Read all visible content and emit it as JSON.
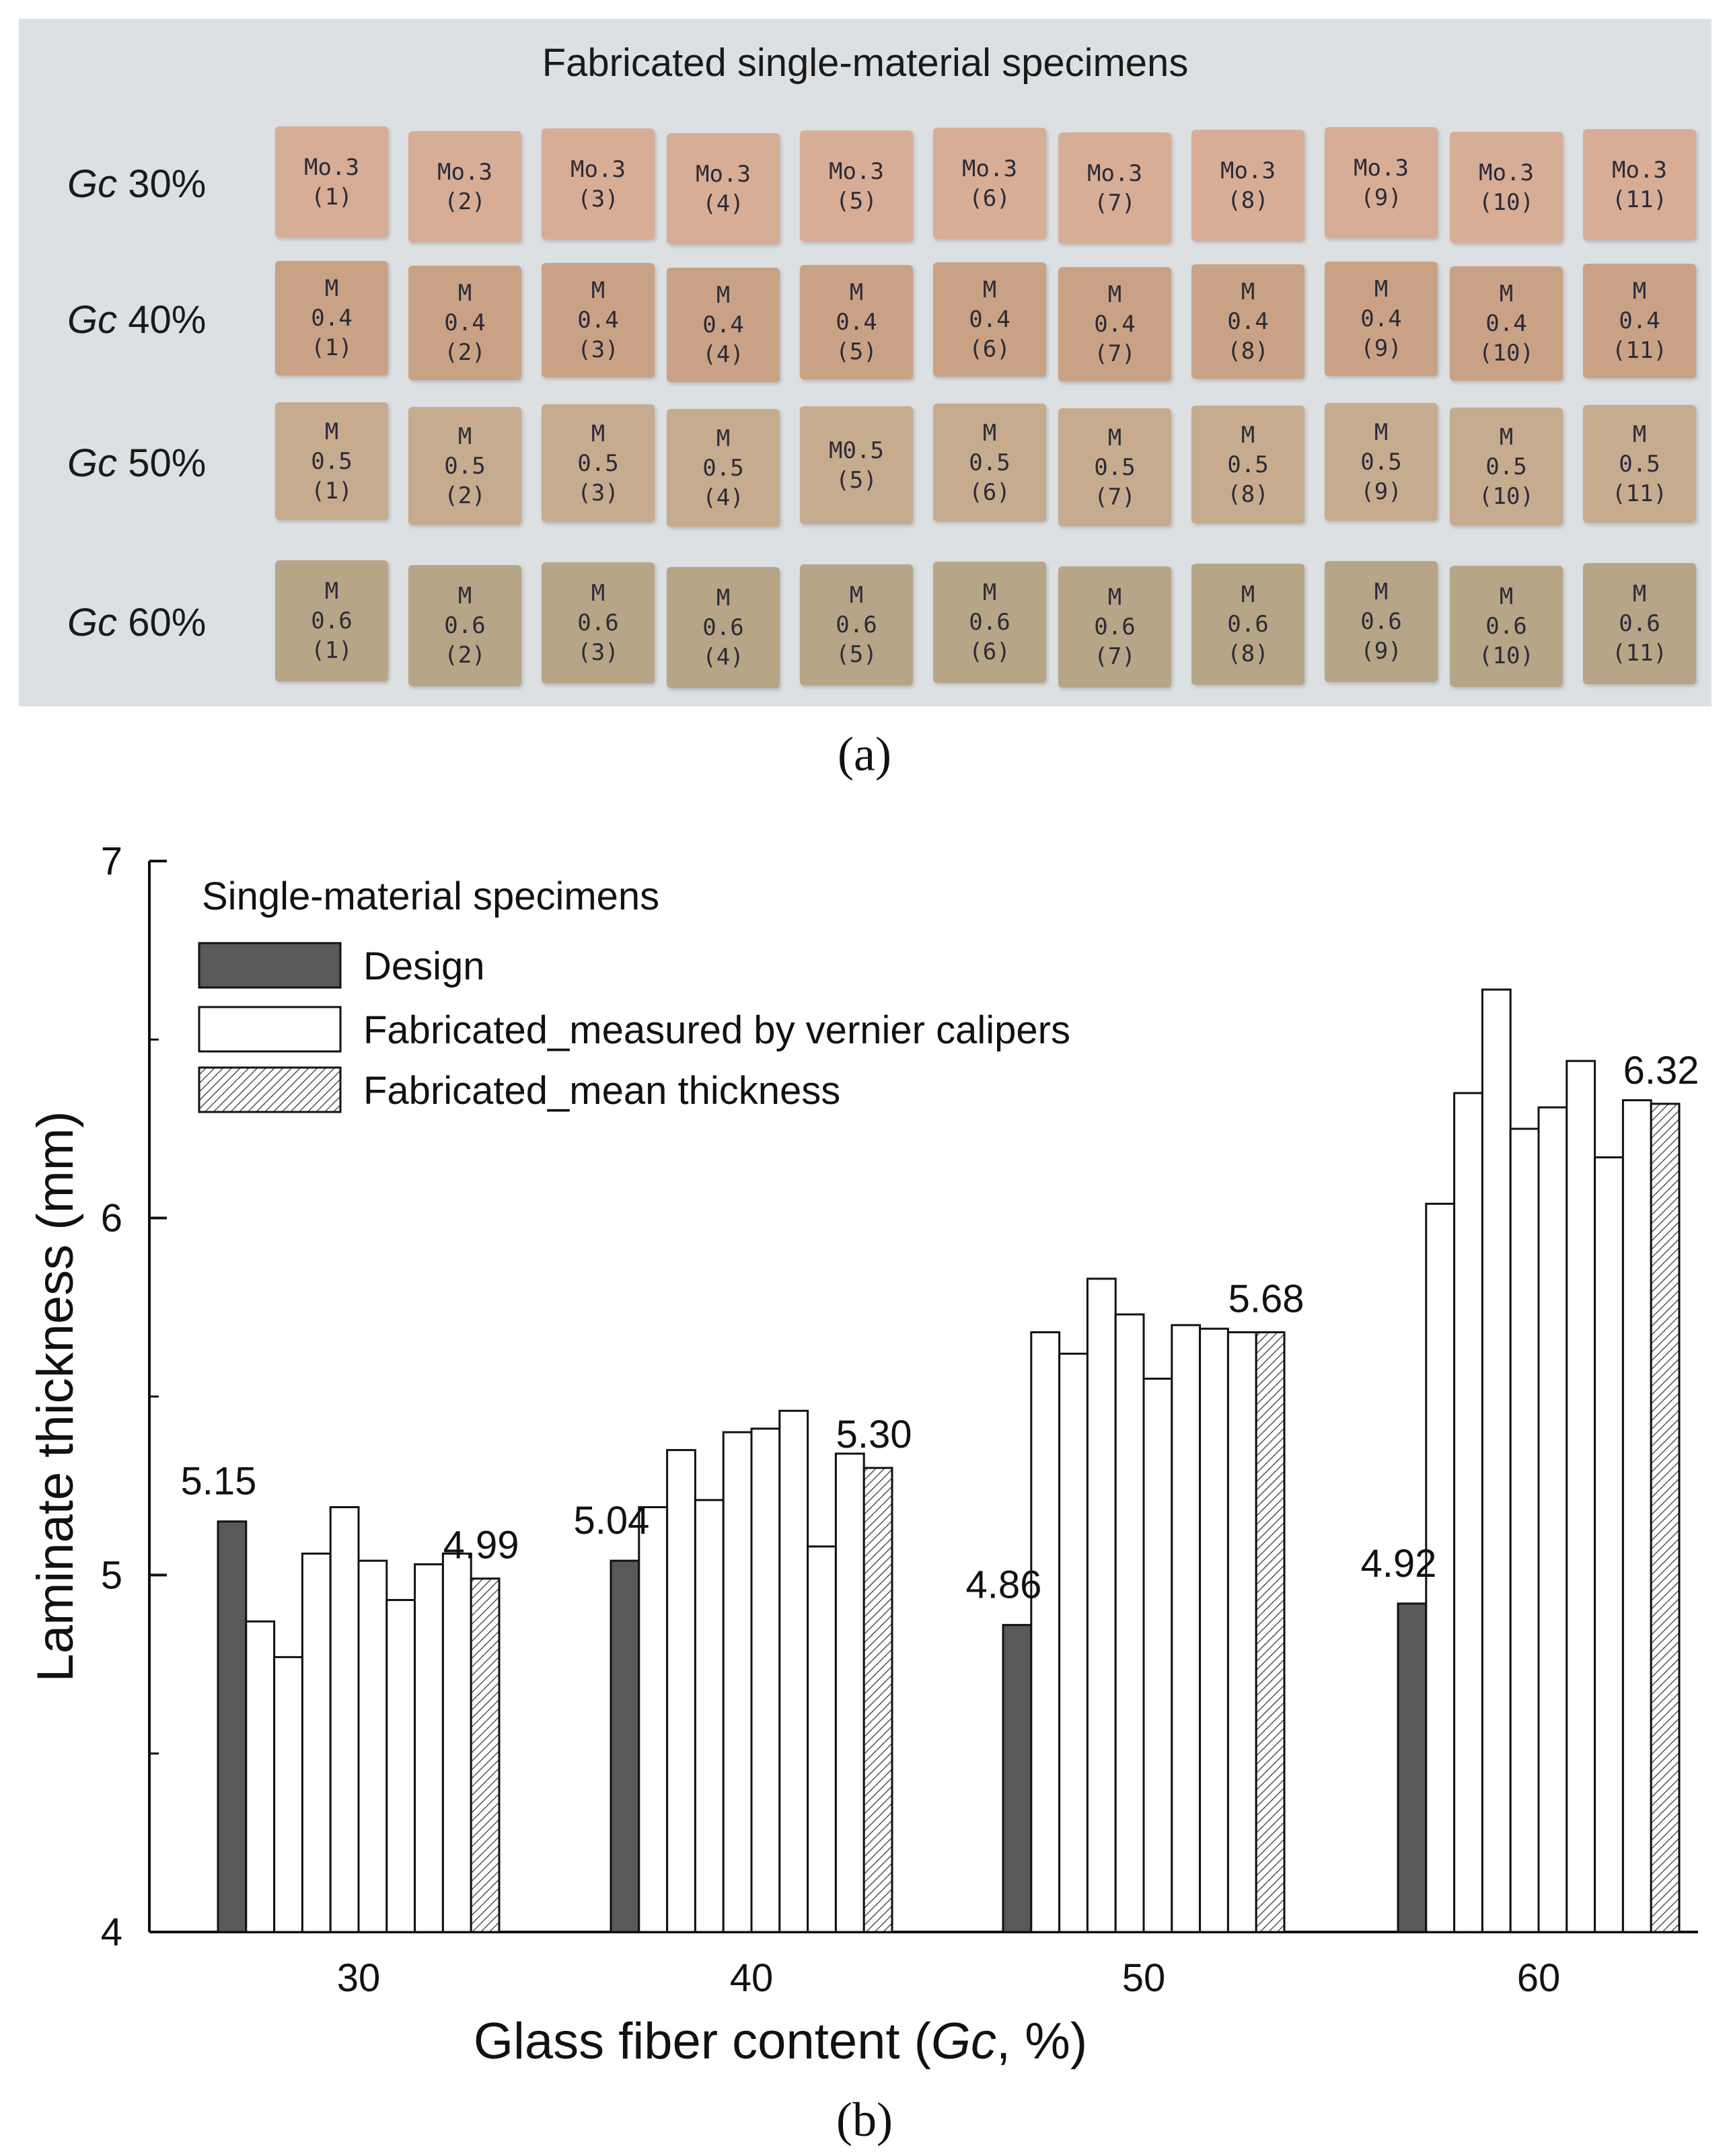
{
  "panel_a": {
    "title": "Fabricated single-material specimens",
    "caption": "(a)",
    "rows": [
      {
        "prefix": "Gc",
        "pct": "30%",
        "specimens": [
          "Mo.3\n(1)",
          "Mo.3\n(2)",
          "Mo.3\n(3)",
          "Mo.3\n(4)",
          "Mo.3\n(5)",
          "Mo.3\n(6)",
          "Mo.3\n(7)",
          "Mo.3\n(8)",
          "Mo.3\n(9)",
          "Mo.3\n(10)",
          "Mo.3\n(11)"
        ]
      },
      {
        "prefix": "Gc",
        "pct": "40%",
        "specimens": [
          "M\n0.4\n(1)",
          "M\n0.4\n(2)",
          "M\n0.4\n(3)",
          "M\n0.4\n(4)",
          "M\n0.4\n(5)",
          "M\n0.4\n(6)",
          "M\n0.4\n(7)",
          "M\n0.4\n(8)",
          "M\n0.4\n(9)",
          "M\n0.4\n(10)",
          "M\n0.4\n(11)"
        ]
      },
      {
        "prefix": "Gc",
        "pct": "50%",
        "specimens": [
          "M\n0.5\n(1)",
          "M\n0.5\n(2)",
          "M\n0.5\n(3)",
          "M\n0.5\n(4)",
          "M0.5\n(5)",
          "M\n0.5\n(6)",
          "M\n0.5\n(7)",
          "M\n0.5\n(8)",
          "M\n0.5\n(9)",
          "M\n0.5\n(10)",
          "M\n0.5\n(11)"
        ]
      },
      {
        "prefix": "Gc",
        "pct": "60%",
        "specimens": [
          "M\n0.6\n(1)",
          "M\n0.6\n(2)",
          "M\n0.6\n(3)",
          "M\n0.6\n(4)",
          "M\n0.6\n(5)",
          "M\n0.6\n(6)",
          "M\n0.6\n(7)",
          "M\n0.6\n(8)",
          "M\n0.6\n(9)",
          "M\n0.6\n(10)",
          "M\n0.6\n(11)"
        ]
      }
    ],
    "colors": {
      "background": "#dde0e2",
      "row_30": "#d7ad96",
      "row_40": "#c9a285",
      "row_50": "#c7ab8e",
      "row_60": "#b6a586"
    }
  },
  "chart_data": {
    "type": "bar",
    "caption": "(b)",
    "categories": [
      "30",
      "40",
      "50",
      "60"
    ],
    "xlabel_prefix": "Glass fiber content (",
    "xlabel_italic": "Gc",
    "xlabel_suffix": ", %)",
    "ylabel": "Laminate thickness (mm)",
    "ylim": [
      4,
      7
    ],
    "yticks": [
      4,
      5,
      6,
      7
    ],
    "minor_ticks": [
      4.5,
      5.5,
      6.5
    ],
    "legend_title": "Single-material specimens",
    "series": [
      {
        "name": "Design",
        "fill": "#595959",
        "values": [
          5.15,
          5.04,
          4.86,
          4.92
        ]
      },
      {
        "name": "Fabricated_measured by vernier calipers",
        "fill": "#ffffff",
        "values": [
          [
            4.87,
            4.77,
            5.06,
            5.19,
            5.04,
            4.93,
            5.03,
            5.06
          ],
          [
            5.19,
            5.35,
            5.21,
            5.4,
            5.41,
            5.46,
            5.08,
            5.34
          ],
          [
            5.68,
            5.62,
            5.83,
            5.73,
            5.55,
            5.7,
            5.69,
            5.68
          ],
          [
            6.04,
            6.35,
            6.64,
            6.25,
            6.31,
            6.44,
            6.17,
            6.33
          ]
        ]
      },
      {
        "name": "Fabricated_mean thickness",
        "fill": "hatch",
        "values": [
          4.99,
          5.3,
          5.68,
          6.32
        ]
      }
    ],
    "labels": {
      "design": [
        "5.15",
        "5.04",
        "4.86",
        "4.92"
      ],
      "mean": [
        "4.99",
        "5.30",
        "5.68",
        "6.32"
      ]
    }
  }
}
